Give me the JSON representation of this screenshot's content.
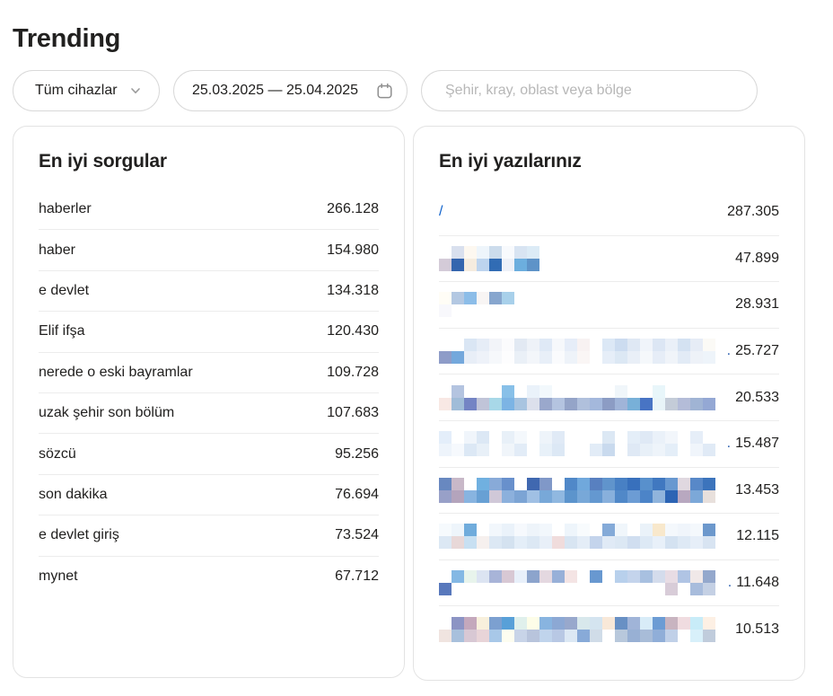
{
  "page": {
    "title": "Trending"
  },
  "colors": {
    "text": "#21201f",
    "link_blue": "#0f62cc",
    "divider": "#ececec",
    "card_border": "#e3e3e3",
    "pill_border": "#d9d9d9",
    "placeholder": "#b7b7b7"
  },
  "filters": {
    "devices": {
      "label": "Tüm cihazlar",
      "icon": "chevron-down-icon"
    },
    "date_range": {
      "value": "25.03.2025 — 25.04.2025",
      "icon": "calendar-icon"
    },
    "region_search": {
      "placeholder": "Şehir, kray, oblast veya bölge",
      "value": ""
    }
  },
  "queries_card": {
    "title": "En iyi sorgular",
    "items": [
      {
        "label": "haberler",
        "value": "266.128"
      },
      {
        "label": "haber",
        "value": "154.980"
      },
      {
        "label": "e devlet",
        "value": "134.318"
      },
      {
        "label": "Elif ifşa",
        "value": "120.430"
      },
      {
        "label": "nerede o eski bayramlar",
        "value": "109.728"
      },
      {
        "label": "uzak şehir son bölüm",
        "value": "107.683"
      },
      {
        "label": "sözcü",
        "value": "95.256"
      },
      {
        "label": "son dakika",
        "value": "76.694"
      },
      {
        "label": "e devlet giriş",
        "value": "73.524"
      },
      {
        "label": "mynet",
        "value": "67.712"
      }
    ]
  },
  "posts_card": {
    "title": "En iyi yazılarınız",
    "items": [
      {
        "type": "link",
        "label": "/",
        "value": "287.305"
      },
      {
        "type": "censored",
        "value": "47.899",
        "mosaic": {
          "rows": [
            [
              null,
              "#d9e0ee",
              "#fdf8f0",
              "#eef5fb",
              "#ccdcec",
              "#f8fafd",
              "#d8e4f2",
              "#dcebf6"
            ],
            [
              "#d4cbd8",
              "#3465ae",
              "#f5ecdf",
              "#bdd4ee",
              "#316cb4",
              "#eef1f8",
              "#6caede",
              "#5e93c8"
            ]
          ]
        }
      },
      {
        "type": "censored",
        "value": "28.931",
        "mosaic": {
          "rows": [
            [
              "#fffdf6",
              "#b3c8e2",
              "#8cbde8",
              "#f8f5f4",
              "#87a6ce",
              "#a8d0ea"
            ],
            [
              "#f8f8fc",
              null,
              null,
              null,
              null,
              null
            ]
          ]
        }
      },
      {
        "type": "censored",
        "value": "25.727",
        "prefix": ".",
        "mosaic": {
          "rows": [
            [
              null,
              null,
              "#dae6f4",
              "#e6edf7",
              "#f2f4f9",
              "#fbfbfd",
              "#e2e9f3",
              "#eef2f8",
              "#dfe9f6",
              "#f6f8fb",
              "#e6edf8",
              "#f8f2f2",
              null,
              "#dce8f6",
              "#ccdcf0",
              "#dfe8f4",
              "#f0f4fa",
              "#dce6f4",
              "#eaf0f8",
              "#d4e2f2",
              "#e6ecf6",
              "#fbfaf6"
            ],
            [
              "#8e9cc8",
              "#74a8dc",
              "#e8eef7",
              "#eef2f9",
              "#f6f8fb",
              "#fdfdfe",
              "#eaf0f7",
              "#f3f6fa",
              "#e8eff8",
              "#fafbfd",
              "#eef3f9",
              "#faf6f5",
              null,
              "#e6eef8",
              "#dce8f4",
              "#e9eff7",
              "#f5f8fb",
              "#e6edf7",
              "#f0f4f9",
              "#e2ebf6",
              "#eef2f8",
              "#eef4fa"
            ]
          ]
        }
      },
      {
        "type": "censored",
        "value": "20.533",
        "mosaic": {
          "rows": [
            [
              null,
              "#b4c4e0",
              null,
              null,
              null,
              "#88c0e8",
              null,
              "#eaf2fa",
              "#f2f8fc",
              null,
              null,
              null,
              null,
              null,
              "#f0f6fa",
              null,
              null,
              "#e8f6fa",
              null,
              null,
              null,
              null
            ],
            [
              "#f8e8e4",
              "#a0bcd8",
              "#7484c4",
              "#c0c4d8",
              "#a8d8e8",
              "#7cb4e4",
              "#a8c4e0",
              "#dce0ec",
              "#9aa8cc",
              "#b4c4e0",
              "#94a4c8",
              "#b0c0dc",
              "#a4b8dc",
              "#8c9cc4",
              "#a0b4d8",
              "#78b0d8",
              "#4874c4",
              "#e8f4f8",
              "#c4ccd8",
              "#b4bcd8",
              "#a0b4d4",
              "#94a8d4"
            ]
          ]
        }
      },
      {
        "type": "censored",
        "value": "15.487",
        "prefix": ".",
        "mosaic": {
          "rows": [
            [
              "#e4eefa",
              null,
              "#f0f5fb",
              "#dce8f5",
              null,
              "#e8f0f8",
              "#f4f8fc",
              null,
              "#eef4fa",
              "#e0eaf6",
              null,
              null,
              null,
              "#dce8f4",
              null,
              "#e4eef8",
              "#dfe9f5",
              "#eaf1f9",
              "#f2f6fb",
              null,
              "#e6eef8",
              null
            ],
            [
              "#eef4fb",
              "#f6f9fd",
              "#dce8f5",
              "#e8f0f8",
              null,
              "#f0f5fa",
              "#e2ecf7",
              null,
              "#e8f1f9",
              "#dce8f5",
              null,
              null,
              "#e2ecf7",
              "#c9daee",
              null,
              "#dfe9f5",
              "#e8f0f8",
              "#eef4fa",
              "#e4eef8",
              null,
              "#f0f5fb",
              "#e0eaf6"
            ]
          ]
        }
      },
      {
        "type": "censored",
        "value": "13.453",
        "mosaic": {
          "rows": [
            [
              "#6888c0",
              "#c8b8c8",
              null,
              "#70b0e0",
              "#88aad8",
              "#6890cc",
              null,
              "#4068b0",
              "#8098c8",
              null,
              "#5088c8",
              "#70a8dc",
              "#5880c0",
              "#6094cc",
              "#4880c4",
              "#3870bc",
              "#5890cc",
              "#4078c0",
              "#6898d0",
              "#e0d8e0",
              "#5888c8",
              "#3c74bc"
            ],
            [
              "#98a0c8",
              "#b4a4bc",
              "#88b4e0",
              "#68a0d4",
              "#d0c8d8",
              "#8cb0dc",
              "#7ca4d4",
              "#a0c0e4",
              "#78a8d8",
              "#90b8e0",
              "#5c94cc",
              "#78a8d8",
              "#6498d0",
              "#88b0dc",
              "#5088c8",
              "#6c9cd4",
              "#4c84c8",
              "#90b4dc",
              "#2c64b4",
              "#b8a8c0",
              "#7ca8d8",
              "#e8e0dc"
            ]
          ]
        }
      },
      {
        "type": "censored",
        "value": "12.115",
        "mosaic": {
          "rows": [
            [
              "#f6fafd",
              "#eef5fb",
              "#70acdc",
              null,
              "#f2f7fc",
              "#eaf2fa",
              "#f6f9fd",
              "#eef4fa",
              "#f2f7fc",
              null,
              "#eef5fb",
              "#f8fbfd",
              null,
              "#84aad8",
              "#f0f6fb",
              null,
              "#eaf2f9",
              "#f8e8cc",
              "#f4f8fc",
              "#f0f5fb",
              "#f4f8fc",
              "#6c98cc"
            ],
            [
              "#dce8f4",
              "#e8d8d8",
              "#c8e0f2",
              "#f6f0ee",
              "#dce8f4",
              "#d4e2f0",
              "#e4eef8",
              "#dce8f4",
              "#e8eff8",
              "#f0dcdc",
              "#d8e5f2",
              "#e4edf7",
              "#c4d4ec",
              "#e0eaf6",
              "#dce8f4",
              "#d0def0",
              "#dde9f5",
              "#e8f0f9",
              "#d4e2f1",
              "#dee9f5",
              "#e6eef8",
              "#d8e4f2"
            ]
          ]
        }
      },
      {
        "type": "censored",
        "value": "11.648",
        "prefix": ".",
        "mosaic": {
          "rows": [
            [
              null,
              "#84b8e4",
              "#e8f4ec",
              "#dce4f2",
              "#a8b4d8",
              "#d8c8d4",
              "#e8f0fa",
              "#8ca4cc",
              "#e4d8e0",
              "#98b0d8",
              "#f4e4e4",
              null,
              "#6898d0",
              null,
              "#b8d0ec",
              "#c4d4ec",
              "#a8c0e0",
              "#d4dcec",
              "#e8dce4",
              "#b0c4e4",
              "#f0e8e8",
              "#94a8cc"
            ],
            [
              "#5878bc",
              null,
              null,
              null,
              null,
              null,
              null,
              null,
              null,
              null,
              null,
              null,
              null,
              null,
              null,
              null,
              null,
              null,
              "#d8ccd8",
              null,
              "#a8bcdc",
              "#c4d0e4"
            ]
          ]
        }
      },
      {
        "type": "censored",
        "value": "10.513",
        "mosaic": {
          "rows": [
            [
              null,
              "#8c94c4",
              "#c4a8bc",
              "#f8f0dc",
              "#7ca0d0",
              "#58a0d8",
              "#e0f0ec",
              "#fdfde8",
              "#88b4e0",
              "#8ca8d4",
              "#98a8cc",
              "#d8e8ec",
              "#d4e4f0",
              "#f8e8d8",
              "#6890c4",
              "#a0b4d8",
              "#d8ecf8",
              "#6c9cd4",
              "#c8b4c0",
              "#f0dce0",
              "#c8ecf8",
              "#fdf0e4"
            ],
            [
              "#f0e4e0",
              "#a8c0dc",
              "#d8c8d4",
              "#e8d4d8",
              "#a8c8e8",
              "#fdfdf0",
              "#c8d4e8",
              "#b8c4dc",
              "#c0d4ec",
              "#b8c8e4",
              "#dce8f4",
              "#88aad8",
              "#d0dce8",
              null,
              "#b8c8dc",
              "#98b0d4",
              "#a8bcd8",
              "#90aed8",
              "#c0d0e8",
              null,
              "#d8f0fa",
              "#c0ccdc"
            ]
          ]
        }
      }
    ]
  }
}
